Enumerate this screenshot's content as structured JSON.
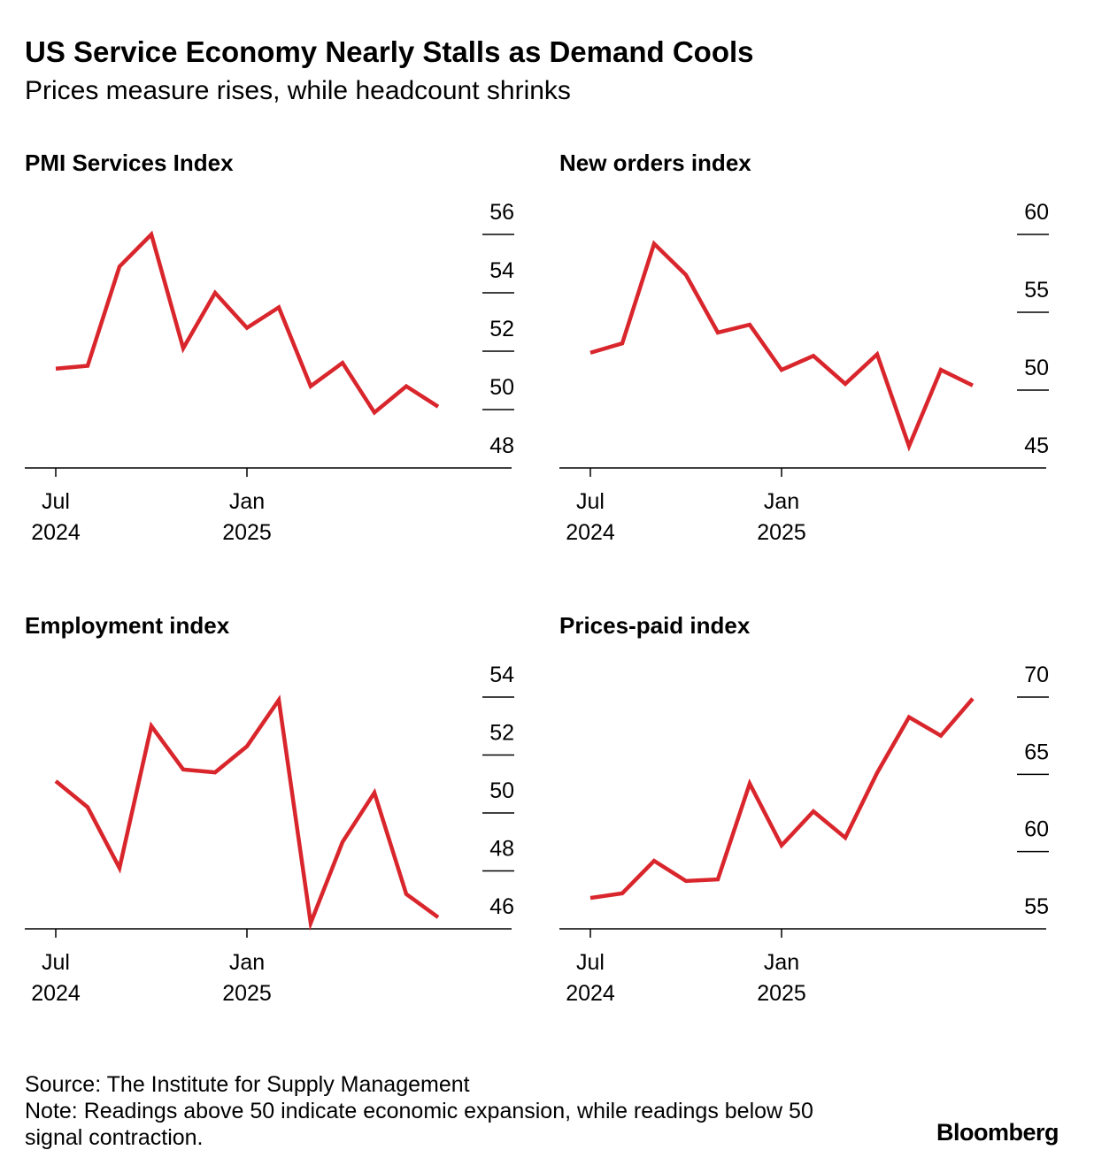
{
  "title": "US Service Economy Nearly Stalls as Demand Cools",
  "subtitle": "Prices measure rises, while headcount shrinks",
  "chart_data": [
    {
      "type": "line",
      "title": "PMI Services Index",
      "categories": [
        "Jul 2024",
        null,
        null,
        null,
        null,
        null,
        "Jan 2025",
        null,
        null,
        null,
        null,
        null,
        null
      ],
      "values": [
        51.4,
        51.5,
        54.9,
        56.0,
        52.1,
        54.0,
        52.8,
        53.5,
        50.8,
        51.6,
        49.9,
        50.8,
        50.1
      ],
      "color": "#d9262c",
      "ylim": [
        48,
        56
      ],
      "yticks": [
        48,
        50,
        52,
        54,
        56
      ]
    },
    {
      "type": "line",
      "title": "New orders index",
      "categories": [
        "Jul 2024",
        null,
        null,
        null,
        null,
        null,
        "Jan 2025",
        null,
        null,
        null,
        null,
        null,
        null
      ],
      "values": [
        52.4,
        53.0,
        59.4,
        57.4,
        53.7,
        54.2,
        51.3,
        52.2,
        50.4,
        52.3,
        46.4,
        51.3,
        50.3
      ],
      "color": "#d9262c",
      "ylim": [
        45,
        60
      ],
      "yticks": [
        45,
        50,
        55,
        60
      ]
    },
    {
      "type": "line",
      "title": "Employment index",
      "categories": [
        "Jul 2024",
        null,
        null,
        null,
        null,
        null,
        "Jan 2025",
        null,
        null,
        null,
        null,
        null,
        null
      ],
      "values": [
        51.1,
        50.2,
        48.1,
        53.0,
        51.5,
        51.4,
        52.3,
        53.9,
        46.2,
        49.0,
        50.7,
        47.2,
        46.4
      ],
      "color": "#d9262c",
      "ylim": [
        46,
        54
      ],
      "yticks": [
        46,
        48,
        50,
        52,
        54
      ]
    },
    {
      "type": "line",
      "title": "Prices-paid index",
      "categories": [
        "Jul 2024",
        null,
        null,
        null,
        null,
        null,
        "Jan 2025",
        null,
        null,
        null,
        null,
        null,
        null
      ],
      "values": [
        57.0,
        57.3,
        59.4,
        58.1,
        58.2,
        64.4,
        60.4,
        62.6,
        60.9,
        65.1,
        68.7,
        67.5,
        69.9
      ],
      "color": "#d9262c",
      "ylim": [
        55,
        70
      ],
      "yticks": [
        55,
        60,
        65,
        70
      ]
    }
  ],
  "source": "Source: The Institute for Supply Management",
  "note": "Note: Readings above 50 indicate economic expansion, while readings below 50 signal contraction.",
  "logo": "Bloomberg"
}
